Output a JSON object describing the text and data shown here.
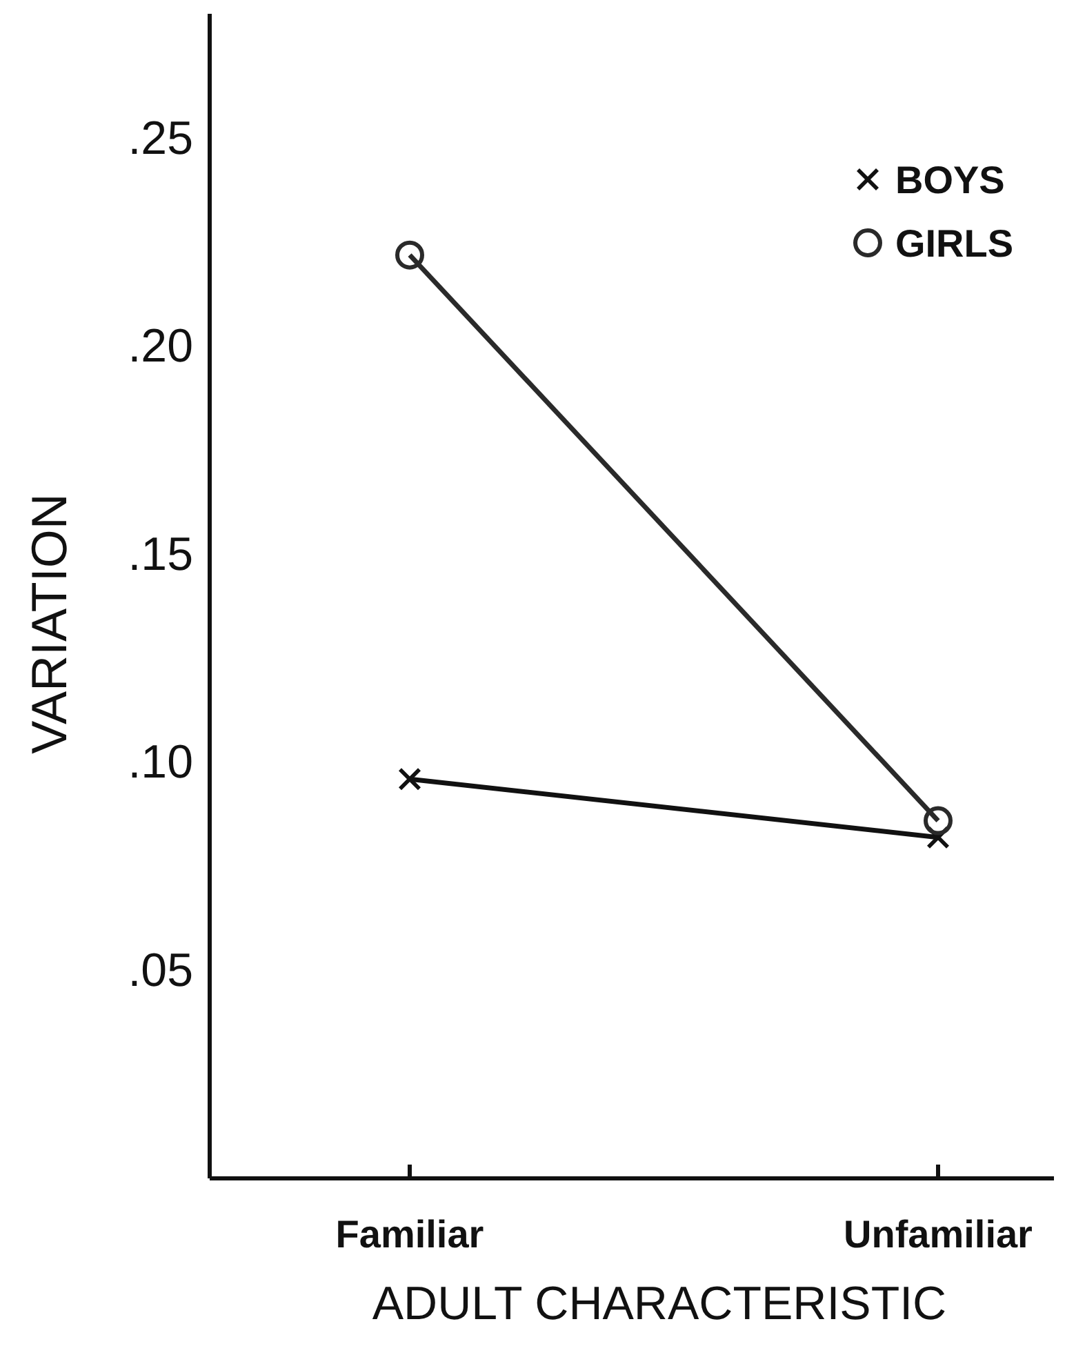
{
  "chart_data": {
    "type": "line",
    "xlabel": "ADULT CHARACTERISTIC",
    "ylabel": "VARIATION",
    "categories": [
      "Familiar",
      "Unfamiliar"
    ],
    "series": [
      {
        "name": "BOYS",
        "color": "#111111",
        "marker": "cross",
        "values": [
          0.096,
          0.082
        ]
      },
      {
        "name": "GIRLS",
        "color": "#2a2a2a",
        "marker": "circle",
        "values": [
          0.222,
          0.086
        ]
      }
    ],
    "ylim": [
      0,
      0.28
    ],
    "yticks": [
      {
        "value": 0.05,
        "label": ".05"
      },
      {
        "value": 0.1,
        "label": ".10"
      },
      {
        "value": 0.15,
        "label": ".15"
      },
      {
        "value": 0.2,
        "label": ".20"
      },
      {
        "value": 0.25,
        "label": ".25"
      }
    ],
    "grid": false,
    "legend": "top right",
    "line_style": "solid"
  }
}
